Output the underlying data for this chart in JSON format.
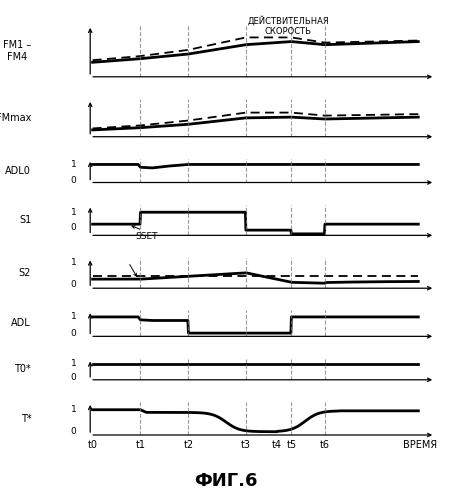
{
  "title": "ФИГ.6",
  "background_color": "#ffffff",
  "line_color": "#000000",
  "vline_color": "#777777",
  "ylabel_fm14": "FM1 –\nFM4",
  "ylabel_fmmax": "FMmax",
  "ylabel_adl0": "ADL0",
  "ylabel_s1": "S1",
  "ylabel_s2": "S2",
  "ylabel_adl": "ADL",
  "ylabel_t0star": "T0*",
  "ylabel_tstar": "T*",
  "annotation_fm14": "ДЕЙСТВИТЕЛЬНАЯ\nСКОРОСТЬ",
  "sset_label": "SSET",
  "time_label": "ВРЕМЯ",
  "fig_label": "ФИГ.6",
  "t0": 0,
  "t1": 1.0,
  "t2": 2.0,
  "t3": 3.2,
  "t4": 3.85,
  "t5": 4.15,
  "t6": 4.85,
  "tend": 6.8
}
